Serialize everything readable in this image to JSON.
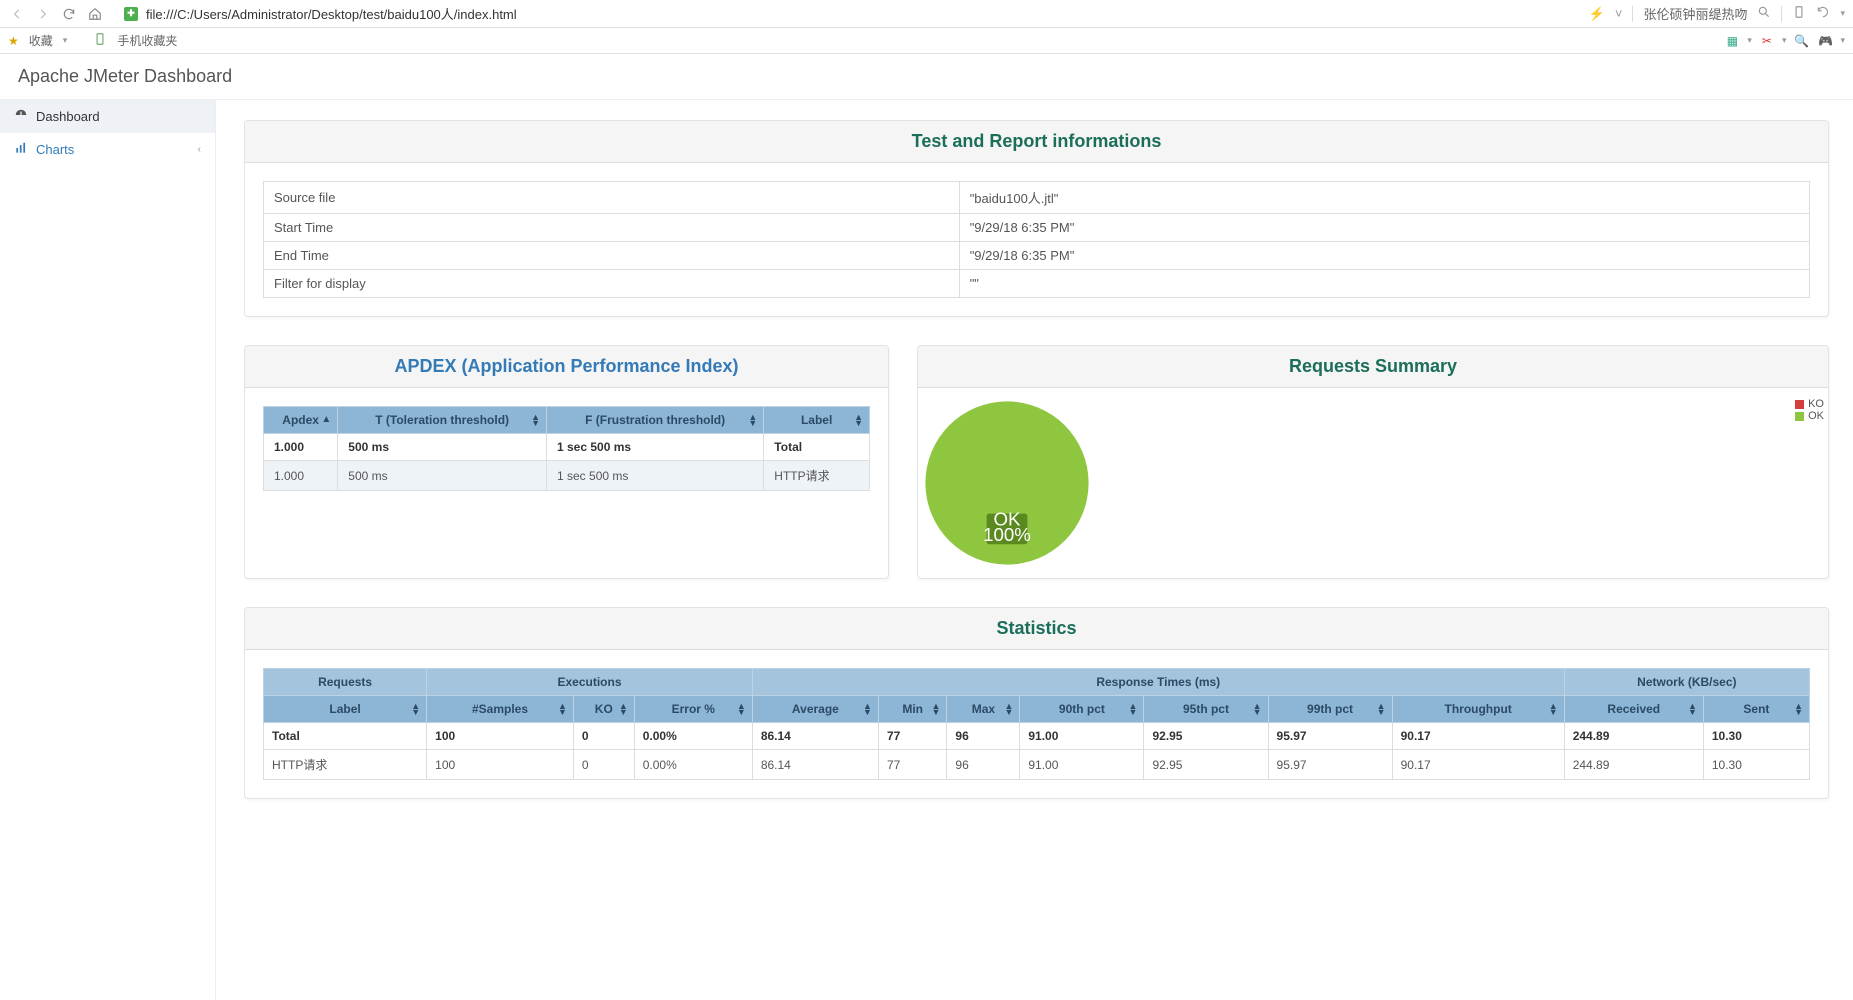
{
  "browser": {
    "url": "file:///C:/Users/Administrator/Desktop/test/baidu100人/index.html",
    "right_text": "张伦硕钟丽缇热吻"
  },
  "bookmarks": {
    "fav_label": "收藏",
    "item1_label": "手机收藏夹"
  },
  "header": {
    "title": "Apache JMeter Dashboard"
  },
  "sidebar": {
    "dashboard": "Dashboard",
    "charts": "Charts"
  },
  "info_panel": {
    "title": "Test and Report informations",
    "rows": [
      {
        "k": "Source file",
        "v": "\"baidu100人.jtl\""
      },
      {
        "k": "Start Time",
        "v": "\"9/29/18 6:35 PM\""
      },
      {
        "k": "End Time",
        "v": "\"9/29/18 6:35 PM\""
      },
      {
        "k": "Filter for display",
        "v": "\"\""
      }
    ]
  },
  "apdex_panel": {
    "title": "APDEX (Application Performance Index)",
    "headers": [
      "Apdex",
      "T (Toleration threshold)",
      "F (Frustration threshold)",
      "Label"
    ],
    "rows": [
      {
        "c0": "1.000",
        "c1": "500 ms",
        "c2": "1 sec 500 ms",
        "c3": "Total",
        "bold": true
      },
      {
        "c0": "1.000",
        "c1": "500 ms",
        "c2": "1 sec 500 ms",
        "c3": "HTTP请求"
      }
    ]
  },
  "summary_panel": {
    "title": "Requests Summary",
    "pie": {
      "ok_color": "#8ec63f",
      "ko_color": "#d43f3a",
      "ok_percent": 100,
      "label_line1": "OK",
      "label_line2": "100%"
    },
    "legend": {
      "ko": "KO",
      "ok": "OK"
    }
  },
  "stats_panel": {
    "title": "Statistics",
    "group_headers": [
      "Requests",
      "Executions",
      "Response Times (ms)",
      "Network (KB/sec)"
    ],
    "headers": [
      "Label",
      "#Samples",
      "KO",
      "Error %",
      "Average",
      "Min",
      "Max",
      "90th pct",
      "95th pct",
      "99th pct",
      "Throughput",
      "Received",
      "Sent"
    ],
    "rows": [
      {
        "bold": true,
        "c0": "Total",
        "c1": "100",
        "c2": "0",
        "c3": "0.00%",
        "c4": "86.14",
        "c5": "77",
        "c6": "96",
        "c7": "91.00",
        "c8": "92.95",
        "c9": "95.97",
        "c10": "90.17",
        "c11": "244.89",
        "c12": "10.30"
      },
      {
        "c0": "HTTP请求",
        "c1": "100",
        "c2": "0",
        "c3": "0.00%",
        "c4": "86.14",
        "c5": "77",
        "c6": "96",
        "c7": "91.00",
        "c8": "92.95",
        "c9": "95.97",
        "c10": "90.17",
        "c11": "244.89",
        "c12": "10.30"
      }
    ]
  },
  "colors": {
    "header_bg": "#8db6d6",
    "header_group_bg": "#a4c3dd"
  }
}
